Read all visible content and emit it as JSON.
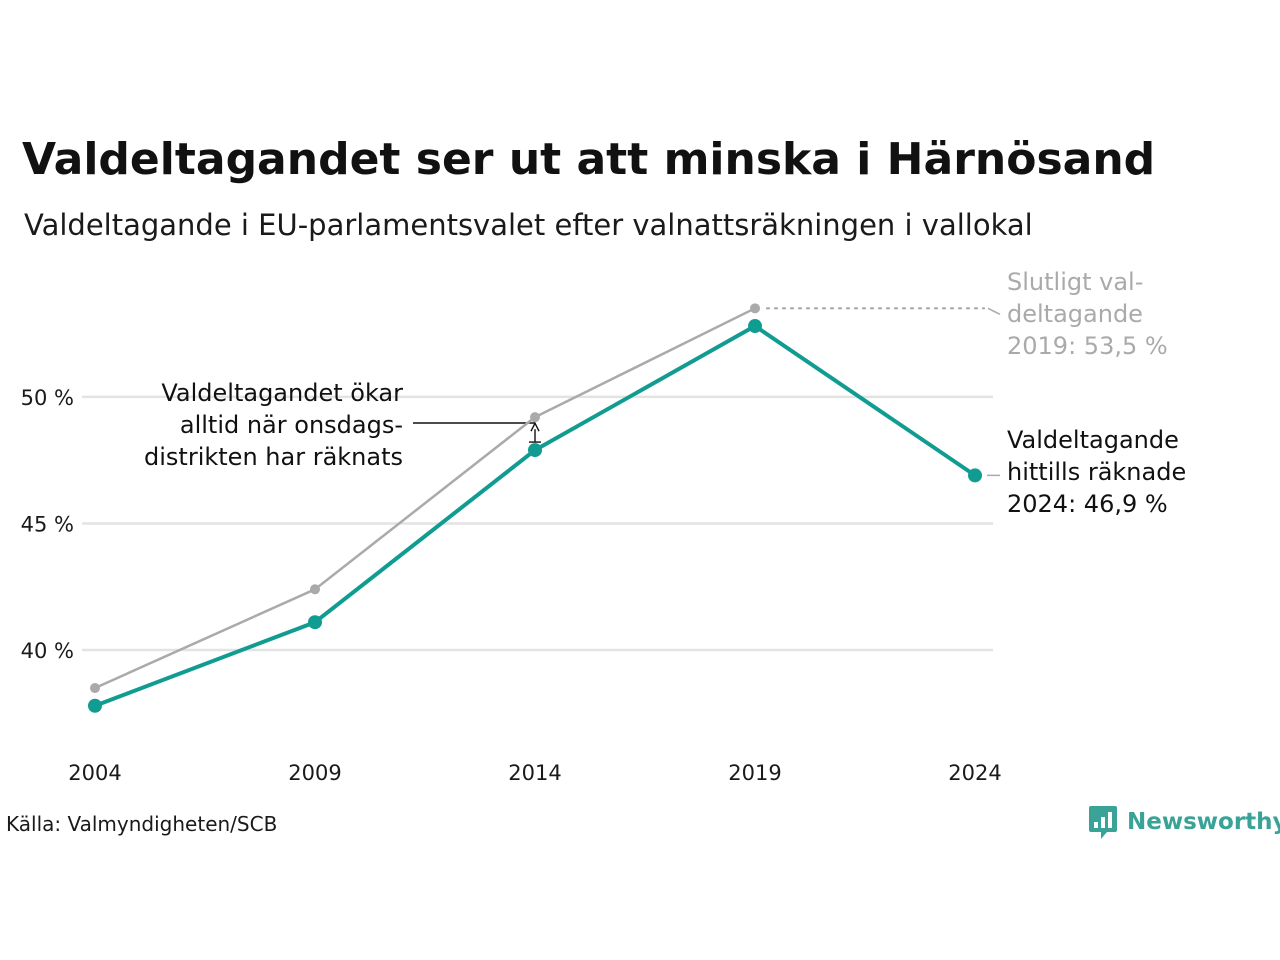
{
  "header": {
    "title": "Valdeltagandet ser ut att minska i Härnösand",
    "subtitle": "Valdeltagande i EU-parlamentsvalet efter valnattsräkningen i vallokal"
  },
  "chart_data": {
    "type": "line",
    "title": "Valdeltagandet ser ut att minska i Härnösand",
    "subtitle": "Valdeltagande i EU-parlamentsvalet efter valnattsräkningen i vallokal",
    "xlabel": "",
    "ylabel": "",
    "x": [
      2004,
      2009,
      2014,
      2019,
      2024
    ],
    "x_tick_labels": [
      "2004",
      "2009",
      "2014",
      "2019",
      "2024"
    ],
    "y_ticks": [
      40,
      45,
      50
    ],
    "y_tick_labels": [
      "40 %",
      "45 %",
      "50 %"
    ],
    "ylim": [
      37,
      54.5
    ],
    "grid": true,
    "legend": "none",
    "series": [
      {
        "key": "final",
        "color": "#aaaaaa",
        "values": [
          38.5,
          42.4,
          49.2,
          53.5,
          null
        ]
      },
      {
        "key": "election_night",
        "color": "#119c92",
        "values": [
          37.8,
          41.1,
          47.9,
          52.8,
          46.9
        ]
      }
    ],
    "annotations": [
      {
        "key": "final_2019",
        "color": "#aaaaaa",
        "lines": [
          "Slutligt val-",
          "deltagande",
          "2019: 53,5 %"
        ]
      },
      {
        "key": "counted_2024",
        "color": "#111111",
        "lines": [
          "Valdeltagande",
          "hittills räknade",
          "2024: 46,9 %"
        ]
      },
      {
        "key": "note_2014",
        "color": "#111111",
        "lines": [
          "Valdeltagandet ökar",
          "alltid när onsdags-",
          "distrikten har räknats"
        ]
      }
    ]
  },
  "footer": {
    "source": "Källa: Valmyndigheten/SCB",
    "brand": "Newsworthy",
    "brand_color": "#3aa397"
  }
}
